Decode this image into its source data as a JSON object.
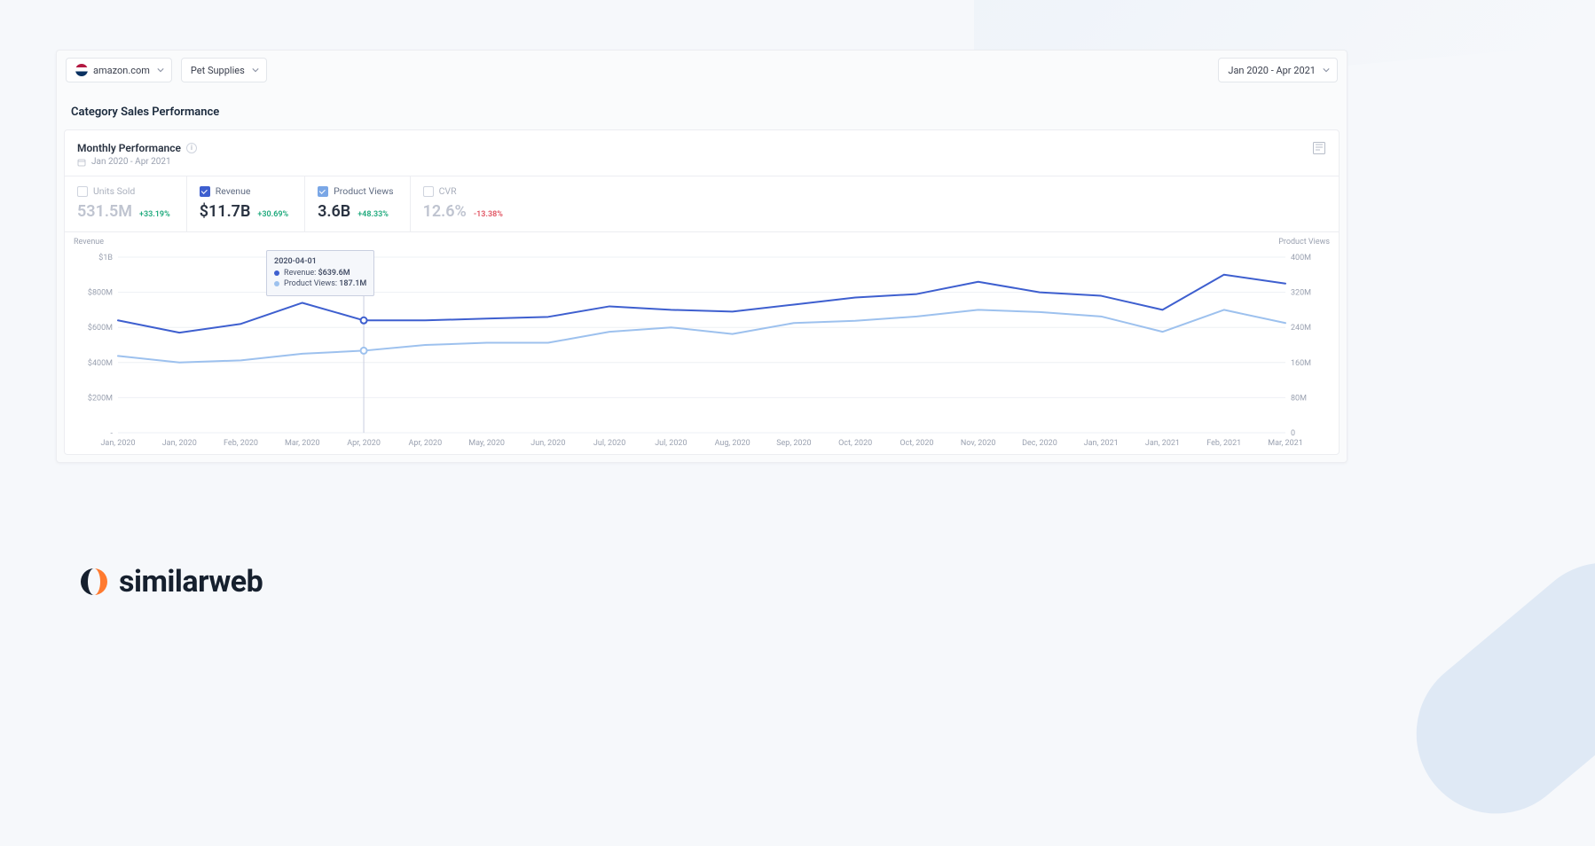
{
  "toolbar": {
    "site_dropdown": "amazon.com",
    "category_dropdown": "Pet Supplies",
    "daterange_dropdown": "Jan 2020 - Apr 2021"
  },
  "section_title": "Category Sales Performance",
  "card": {
    "title": "Monthly Performance",
    "subtitle": "Jan 2020 - Apr 2021",
    "export_tooltip": "Export"
  },
  "metrics": [
    {
      "key": "units",
      "label": "Units Sold",
      "value": "531.5M",
      "delta": "+33.19%",
      "delta_dir": "up",
      "checked": false,
      "color": "#cfd4de"
    },
    {
      "key": "revenue",
      "label": "Revenue",
      "value": "$11.7B",
      "delta": "+30.69%",
      "delta_dir": "up",
      "checked": true,
      "color": "#3e5fcf"
    },
    {
      "key": "views",
      "label": "Product Views",
      "value": "3.6B",
      "delta": "+48.33%",
      "delta_dir": "up",
      "checked": true,
      "color": "#7aa7e6"
    },
    {
      "key": "cvr",
      "label": "CVR",
      "value": "12.6%",
      "delta": "-13.38%",
      "delta_dir": "down",
      "checked": false,
      "color": "#cfd4de"
    }
  ],
  "chart": {
    "type": "line",
    "background_color": "#ffffff",
    "grid_color": "#eef0f4",
    "axis_text_color": "#9aa1b0",
    "axis_fontsize": 9,
    "x_categories": [
      "Jan, 2020",
      "Jan, 2020",
      "Feb, 2020",
      "Mar, 2020",
      "Apr, 2020",
      "Apr, 2020",
      "May, 2020",
      "Jun, 2020",
      "Jul, 2020",
      "Jul, 2020",
      "Aug, 2020",
      "Sep, 2020",
      "Oct, 2020",
      "Oct, 2020",
      "Nov, 2020",
      "Dec, 2020",
      "Jan, 2021",
      "Jan, 2021",
      "Feb, 2021",
      "Mar, 2021"
    ],
    "left_axis": {
      "title": "Revenue",
      "min": 0,
      "max": 1000,
      "unit": "M",
      "ticks": [
        0,
        200,
        400,
        600,
        800,
        1000
      ],
      "tick_labels": [
        "-",
        "$200M",
        "$400M",
        "$600M",
        "$800M",
        "$1B"
      ]
    },
    "right_axis": {
      "title": "Product Views",
      "min": 0,
      "max": 400,
      "unit": "M",
      "ticks": [
        0,
        80,
        160,
        240,
        320,
        400
      ],
      "tick_labels": [
        "0",
        "80M",
        "160M",
        "240M",
        "320M",
        "400M"
      ]
    },
    "series": [
      {
        "name": "Revenue",
        "axis": "left",
        "color": "#3e5fcf",
        "line_width": 2,
        "values": [
          640,
          570,
          620,
          740,
          640,
          640,
          650,
          660,
          720,
          700,
          690,
          730,
          770,
          790,
          860,
          800,
          780,
          700,
          900,
          850
        ]
      },
      {
        "name": "Product Views",
        "axis": "right",
        "color": "#9dc1ee",
        "line_width": 2,
        "values": [
          175,
          160,
          165,
          180,
          187,
          200,
          205,
          205,
          230,
          240,
          225,
          250,
          255,
          265,
          280,
          275,
          265,
          230,
          280,
          250
        ]
      }
    ],
    "hover_index": 4,
    "tooltip": {
      "date": "2020-04-01",
      "rows": [
        {
          "dot": "#3e5fcf",
          "label": "Revenue:",
          "value": "$639.6M"
        },
        {
          "dot": "#9dc1ee",
          "label": "Product Views:",
          "value": "187.1M"
        }
      ]
    }
  },
  "brand": {
    "name": "similarweb",
    "mark_colors": [
      "#ff7a2f",
      "#16202e"
    ]
  }
}
